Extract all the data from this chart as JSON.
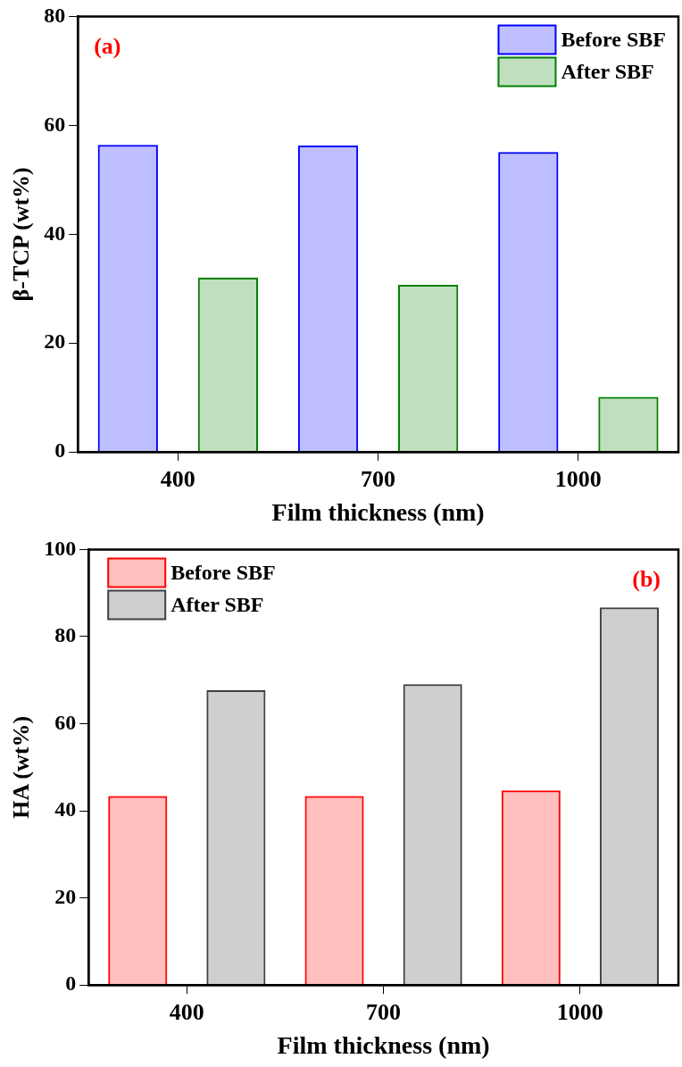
{
  "chart_data": [
    {
      "type": "bar",
      "xlabel": "Film thickness (nm)",
      "ylabel": "β-TCP (wt%)",
      "categories": [
        "400",
        "700",
        "1000"
      ],
      "series": [
        {
          "name": "Before SBF",
          "color": "#0000ff",
          "values": [
            56.4,
            56.3,
            55.1
          ]
        },
        {
          "name": "After SBF",
          "color": "#008000",
          "values": [
            32.0,
            30.7,
            10.1
          ]
        }
      ],
      "ylim": [
        0,
        80
      ],
      "yticks": [
        0,
        20,
        40,
        60,
        80
      ],
      "grid": false,
      "legend": "top right",
      "annotations": [
        "(a)"
      ]
    },
    {
      "type": "bar",
      "xlabel": "Film thickness (nm)",
      "ylabel": "HA (wt%)",
      "categories": [
        "400",
        "700",
        "1000"
      ],
      "series": [
        {
          "name": "Before SBF",
          "color": "#ff0000",
          "values": [
            43.4,
            43.4,
            44.7
          ]
        },
        {
          "name": "After SBF",
          "color": "#404040",
          "values": [
            67.7,
            69.1,
            86.7
          ]
        }
      ],
      "ylim": [
        0,
        100
      ],
      "yticks": [
        0,
        20,
        40,
        60,
        80,
        100
      ],
      "grid": false,
      "legend": "top left",
      "annotations": [
        "(b)"
      ]
    }
  ]
}
